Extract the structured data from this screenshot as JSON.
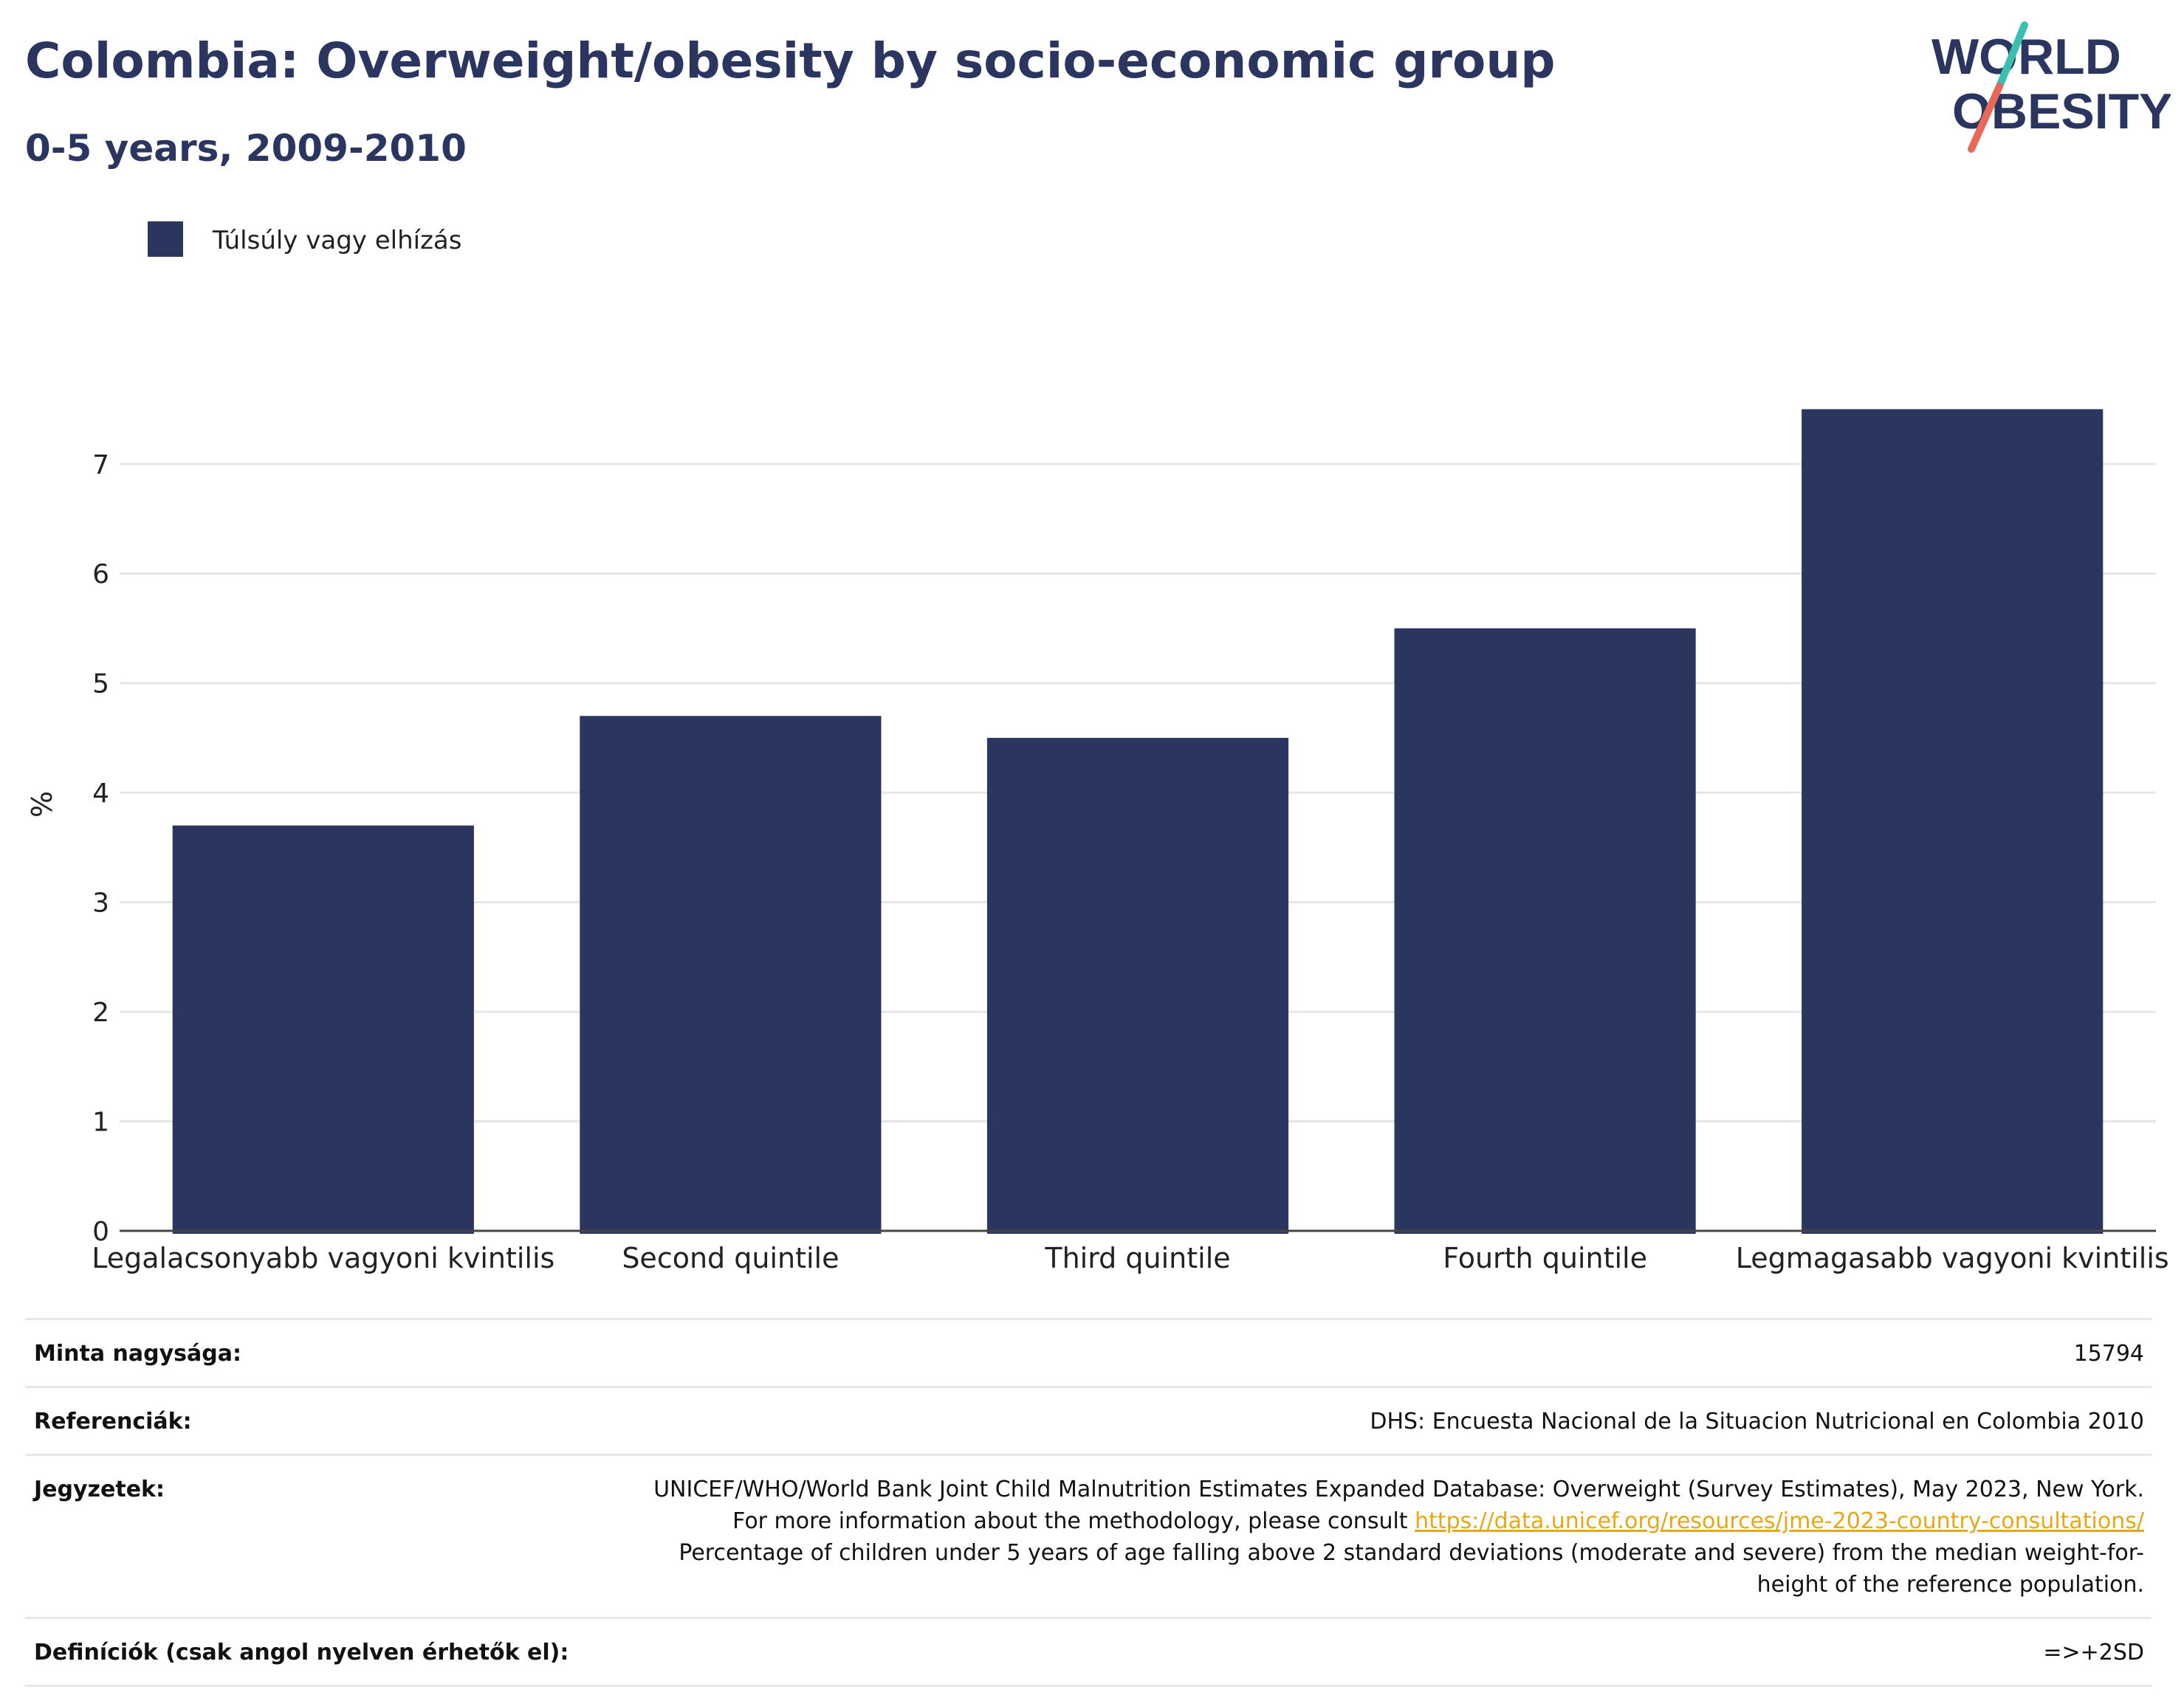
{
  "header": {
    "title": "Colombia: Overweight/obesity by socio-economic group",
    "subtitle": "0-5 years, 2009-2010"
  },
  "logo": {
    "line1": "WORLD",
    "line2": "OBESITY",
    "text_color": "#2b3660",
    "slash_top_color": "#3bbfb0",
    "slash_bottom_color": "#e8685a"
  },
  "chart_data": {
    "type": "bar",
    "categories": [
      "Legalacsonyabb vagyoni kvintilis",
      "Second quintile",
      "Third quintile",
      "Fourth quintile",
      "Legmagasabb vagyoni kvintilis"
    ],
    "series": [
      {
        "name": "Túlsúly vagy elhízás",
        "color": "#2b3660",
        "values": [
          3.7,
          4.7,
          4.5,
          5.5,
          7.5
        ]
      }
    ],
    "ylabel": "%",
    "xlabel": "",
    "ylim": [
      0,
      7.8
    ],
    "yticks": [
      0,
      1,
      2,
      3,
      4,
      5,
      6,
      7
    ],
    "grid": true,
    "legend_position": "top-left"
  },
  "table": {
    "rows": [
      {
        "label": "Minta nagysága:",
        "value": "15794"
      },
      {
        "label": "Referenciák:",
        "value": "DHS: Encuesta Nacional de la Situacion Nutricional en Colombia 2010"
      },
      {
        "label": "Jegyzetek:",
        "value_before_link": "UNICEF/WHO/World Bank Joint Child Malnutrition Estimates Expanded Database: Overweight (Survey Estimates), May 2023, New York. For more information about the methodology, please consult ",
        "link": "https://data.unicef.org/resources/jme-2023-country-consultations/",
        "value_after_link": " Percentage of children under 5 years of age falling above 2 standard deviations (moderate and severe) from the median weight-for-height of the reference population."
      },
      {
        "label": "Definíciók (csak angol nyelven érhetők el):",
        "value": "=>+2SD"
      }
    ]
  }
}
